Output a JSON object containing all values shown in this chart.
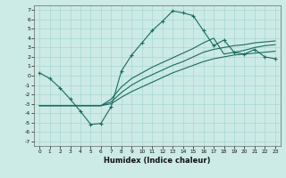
{
  "xlabel": "Humidex (Indice chaleur)",
  "bg_color": "#cceae6",
  "grid_color": "#a8d8d2",
  "line_color": "#1a6b60",
  "xlim": [
    -0.5,
    23.5
  ],
  "ylim": [
    -7.5,
    7.5
  ],
  "xticks": [
    0,
    1,
    2,
    3,
    4,
    5,
    6,
    7,
    8,
    9,
    10,
    11,
    12,
    13,
    14,
    15,
    16,
    17,
    18,
    19,
    20,
    21,
    22,
    23
  ],
  "yticks": [
    -7,
    -6,
    -5,
    -4,
    -3,
    -2,
    -1,
    0,
    1,
    2,
    3,
    4,
    5,
    6,
    7
  ],
  "line1_x": [
    0,
    1,
    2,
    3,
    4,
    5,
    6,
    7,
    8,
    9,
    10,
    11,
    12,
    13,
    14,
    15,
    16,
    17,
    18,
    19,
    20,
    21,
    22,
    23
  ],
  "line1_y": [
    0.3,
    -0.3,
    -1.3,
    -2.5,
    -3.8,
    -5.2,
    -5.1,
    -3.3,
    0.5,
    2.2,
    3.5,
    4.8,
    5.8,
    6.9,
    6.7,
    6.4,
    4.8,
    3.2,
    3.8,
    2.5,
    2.3,
    2.8,
    2.0,
    1.8
  ],
  "line2_x": [
    0,
    1,
    2,
    3,
    4,
    5,
    6,
    7,
    8,
    9,
    10,
    11,
    12,
    13,
    14,
    15,
    16,
    17,
    18,
    19,
    20,
    21,
    22,
    23
  ],
  "line2_y": [
    -3.2,
    -3.2,
    -3.2,
    -3.2,
    -3.2,
    -3.2,
    -3.2,
    -3.0,
    -2.3,
    -1.7,
    -1.2,
    -0.7,
    -0.2,
    0.3,
    0.7,
    1.1,
    1.5,
    1.8,
    2.0,
    2.2,
    2.3,
    2.4,
    2.5,
    2.6
  ],
  "line3_x": [
    0,
    1,
    2,
    3,
    4,
    5,
    6,
    7,
    8,
    9,
    10,
    11,
    12,
    13,
    14,
    15,
    16,
    17,
    18,
    19,
    20,
    21,
    22,
    23
  ],
  "line3_y": [
    -3.2,
    -3.2,
    -3.2,
    -3.2,
    -3.2,
    -3.2,
    -3.2,
    -2.8,
    -1.8,
    -1.0,
    -0.4,
    0.1,
    0.6,
    1.1,
    1.5,
    2.0,
    2.5,
    2.8,
    3.0,
    3.2,
    3.3,
    3.5,
    3.6,
    3.7
  ],
  "line4_x": [
    0,
    1,
    2,
    3,
    4,
    5,
    6,
    7,
    8,
    9,
    10,
    11,
    12,
    13,
    14,
    15,
    16,
    17,
    18,
    19,
    20,
    21,
    22,
    23
  ],
  "line4_y": [
    -3.2,
    -3.2,
    -3.2,
    -3.2,
    -3.2,
    -3.2,
    -3.2,
    -2.5,
    -1.2,
    -0.3,
    0.3,
    0.9,
    1.4,
    1.9,
    2.4,
    2.9,
    3.5,
    4.0,
    2.3,
    2.5,
    2.7,
    3.0,
    3.2,
    3.3
  ]
}
